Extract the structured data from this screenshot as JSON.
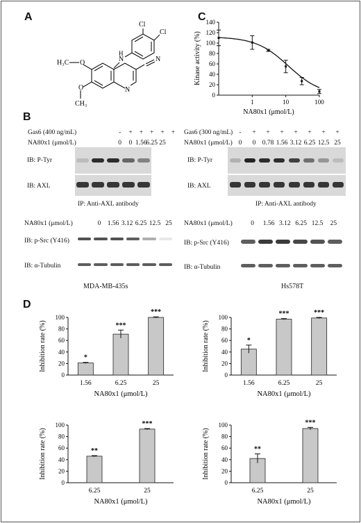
{
  "panels": {
    "a": "A",
    "b": "B",
    "c": "C",
    "d": "D"
  },
  "structure": {
    "substituent_top": "Cl",
    "substituent_right": "Cl",
    "amine": "N",
    "amine_h": "H",
    "cyano": "N",
    "ring_n": "N",
    "methoxy_top": "O",
    "methoxy_top_methyl": "H₃C",
    "methoxy_bottom": "O",
    "methoxy_bottom_methyl": "CH₃"
  },
  "panel_c": {
    "chart_data": {
      "type": "line",
      "xlabel": "NA80x1 (μmol/L)",
      "ylabel": "Kinase activity (%)",
      "x_scale": "log",
      "xlim": [
        0.1,
        100
      ],
      "ylim": [
        0,
        140
      ],
      "x_ticks": [
        "1",
        "10",
        "100"
      ],
      "y_ticks": [
        "0",
        "20",
        "40",
        "60",
        "80",
        "100",
        "120",
        "140"
      ],
      "points": [
        {
          "x": 0.1,
          "y": 110,
          "err": 15
        },
        {
          "x": 1,
          "y": 101,
          "err": 13
        },
        {
          "x": 3,
          "y": 86,
          "err": 2
        },
        {
          "x": 10,
          "y": 55,
          "err": 12
        },
        {
          "x": 30,
          "y": 27,
          "err": 7
        },
        {
          "x": 100,
          "y": 7,
          "err": 4
        }
      ],
      "grid": false
    }
  },
  "panel_b": {
    "left": {
      "gas6_label": "Gas6 (400 ng/mL)",
      "gas6_values": [
        "-",
        "+",
        "+",
        "+",
        "+",
        "+"
      ],
      "drug_label": "NA80x1 (μmol/L)",
      "drug_values": [
        "0",
        "0",
        "1.56",
        "6.25",
        "25",
        ""
      ],
      "blot1": "IB: P-Tyr",
      "blot2": "IB: AXL",
      "ip": "IP: Anti-AXL antibody",
      "drug_label2": "NA80x1 (μmol/L)",
      "drug_values2": [
        "0",
        "1.56",
        "3.12",
        "6.25",
        "12.5",
        "25"
      ],
      "blot3": "IB: p-Src (Y416)",
      "blot4": "IB: α-Tubulin",
      "cell_line": "MDA-MB-435s"
    },
    "right": {
      "gas6_label": "Gas6 (300 ng/mL)",
      "gas6_values": [
        "-",
        "+",
        "+",
        "+",
        "+",
        "+",
        "+",
        "+"
      ],
      "drug_label": "NA80x1 (μmol/L)",
      "drug_values": [
        "0",
        "0",
        "0.78",
        "1.56",
        "3.12",
        "6.25",
        "12.5",
        "25"
      ],
      "blot1": "IB: P-Tyr",
      "blot2": "IB: AXL",
      "ip": "IP: Anti-AXL antibody",
      "drug_label2": "NA80x1 (μmol/L)",
      "drug_values2": [
        "0",
        "1.56",
        "3.12",
        "6.25",
        "12.5",
        "25"
      ],
      "blot3": "IB: p-Src (Y416)",
      "blot4": "IB: α-Tubulin",
      "cell_line": "Hs578T"
    }
  },
  "panel_d": {
    "chart_data": [
      {
        "type": "bar",
        "categories": [
          "1.56",
          "6.25",
          "25"
        ],
        "values": [
          21,
          71,
          100
        ],
        "errors": [
          1,
          7,
          1
        ],
        "significance": [
          "*",
          "***",
          "***"
        ],
        "xlabel": "NA80x1 (μmol/L)",
        "ylabel": "Inhibition rate (%)",
        "ylim": [
          0,
          100
        ],
        "y_ticks": [
          "0",
          "20",
          "40",
          "60",
          "80",
          "100"
        ]
      },
      {
        "type": "bar",
        "categories": [
          "1.56",
          "6.25",
          "25"
        ],
        "values": [
          45,
          97,
          99
        ],
        "errors": [
          7,
          1,
          1
        ],
        "significance": [
          "*",
          "***",
          "***"
        ],
        "xlabel": "NA80x1 (μmol/L)",
        "ylabel": "Inhibition rate (%)",
        "ylim": [
          0,
          100
        ],
        "y_ticks": [
          "0",
          "20",
          "40",
          "60",
          "80",
          "100"
        ]
      },
      {
        "type": "bar",
        "categories": [
          "6.25",
          "25"
        ],
        "values": [
          46,
          93
        ],
        "errors": [
          1,
          1
        ],
        "significance": [
          "**",
          "***"
        ],
        "xlabel": "NA80x1 (μmol/L)",
        "ylabel": "Inhibition rate (%)",
        "ylim": [
          0,
          100
        ],
        "y_ticks": [
          "0",
          "20",
          "40",
          "60",
          "80",
          "100"
        ]
      },
      {
        "type": "bar",
        "categories": [
          "6.25",
          "25"
        ],
        "values": [
          42,
          94
        ],
        "errors": [
          8,
          2
        ],
        "significance": [
          "**",
          "***"
        ],
        "xlabel": "NA80x1 (μmol/L)",
        "ylabel": "Inhibition rate (%)",
        "ylim": [
          0,
          100
        ],
        "y_ticks": [
          "0",
          "20",
          "40",
          "60",
          "80",
          "100"
        ]
      }
    ]
  }
}
